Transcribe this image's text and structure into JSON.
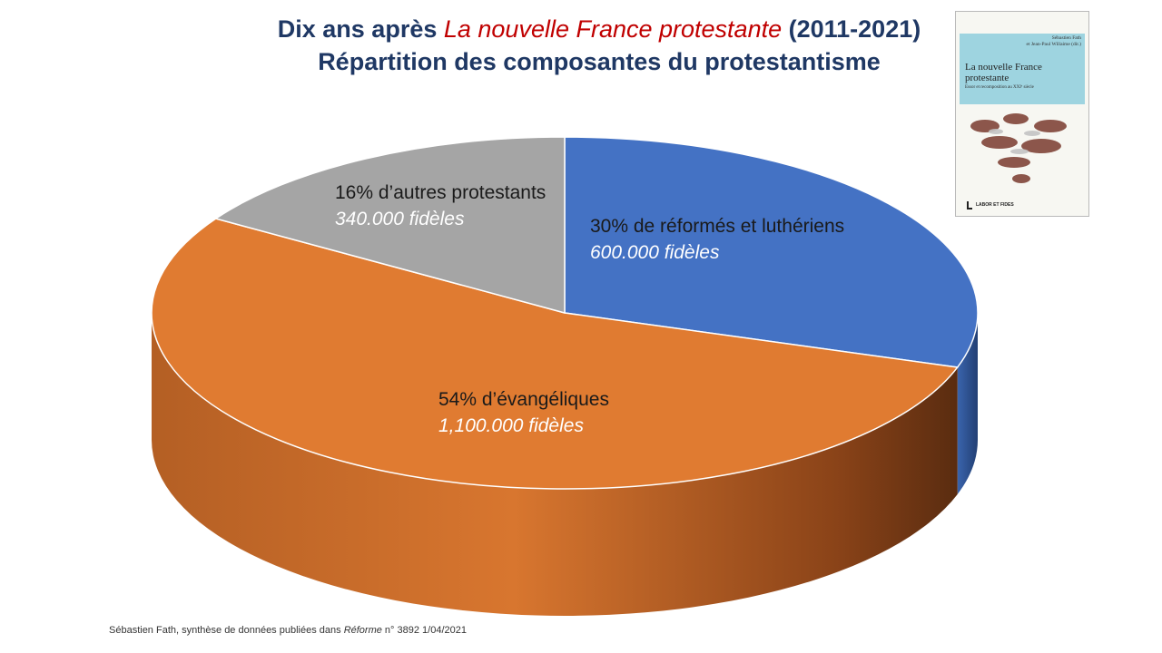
{
  "title": {
    "prefix": "Dix ans après ",
    "book_title": "La nouvelle France protestante",
    "suffix": " (2011-2021)",
    "line2": "Répartition des composantes du protestantisme"
  },
  "chart_data": {
    "type": "pie",
    "style": "3d",
    "slices": [
      {
        "name": "réformés et luthériens",
        "value": 30,
        "label": "30% de réformés et luthériens",
        "count_label": "600.000 fidèles",
        "color": "#4472c4",
        "side_color": "#2d4f8c"
      },
      {
        "name": "évangéliques",
        "value": 54,
        "label": "54% d’évangéliques",
        "count_label": "1,100.000 fidèles",
        "color": "#e07b31",
        "side_color": "#a9541d"
      },
      {
        "name": "autres protestants",
        "value": 16,
        "label": "16% d’autres protestants",
        "count_label": "340.000 fidèles",
        "color": "#a5a5a5",
        "side_color": "#7a7a7a"
      }
    ]
  },
  "book_cover": {
    "authors_line1": "Sébastien Fath",
    "authors_line2": "et Jean-Paul Willaime (dir.)",
    "title": "La nouvelle France protestante",
    "subtitle": "Essor et recomposition au XXIᵉ siècle",
    "publisher": "LABOR ET FIDES"
  },
  "source": {
    "before": "Sébastien Fath, synthèse de données publiées dans ",
    "journal": "Réforme",
    "after": " n° 3892 1/04/2021"
  }
}
